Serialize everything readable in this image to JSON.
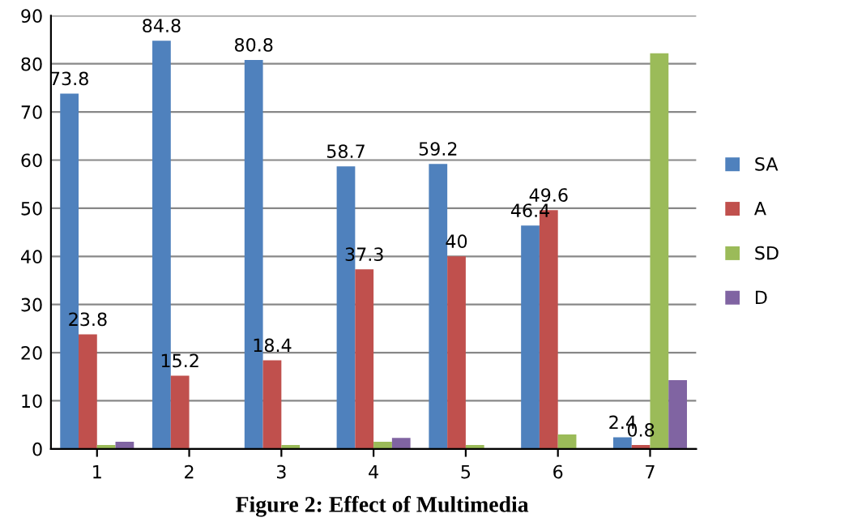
{
  "chart_data": {
    "type": "bar",
    "categories": [
      "1",
      "2",
      "3",
      "4",
      "5",
      "6",
      "7"
    ],
    "series": [
      {
        "name": "SA",
        "color": "#4f81bd",
        "values": [
          73.8,
          84.8,
          80.8,
          58.7,
          59.2,
          46.4,
          2.4
        ],
        "value_labels": [
          "73.8",
          "84.8",
          "80.8",
          "58.7",
          "59.2",
          "46.4",
          "2.4"
        ]
      },
      {
        "name": "A",
        "color": "#c0504d",
        "values": [
          23.8,
          15.2,
          18.4,
          37.3,
          40,
          49.6,
          0.8
        ],
        "value_labels": [
          "23.8",
          "15.2",
          "18.4",
          "37.3",
          "40",
          "49.6",
          "0.8"
        ]
      },
      {
        "name": "SD",
        "color": "#9bbb59",
        "values": [
          0.8,
          null,
          0.8,
          1.5,
          0.8,
          3,
          82.2
        ]
      },
      {
        "name": "D",
        "color": "#8064a2",
        "values": [
          1.5,
          null,
          null,
          2.3,
          null,
          null,
          14.3
        ]
      }
    ],
    "ylim": [
      0,
      90
    ],
    "yticks": [
      0,
      10,
      20,
      30,
      40,
      50,
      60,
      70,
      80,
      90
    ],
    "grid": "y",
    "legend": "right",
    "annotations": [
      "Figure 2: Effect of Multimedia"
    ]
  }
}
